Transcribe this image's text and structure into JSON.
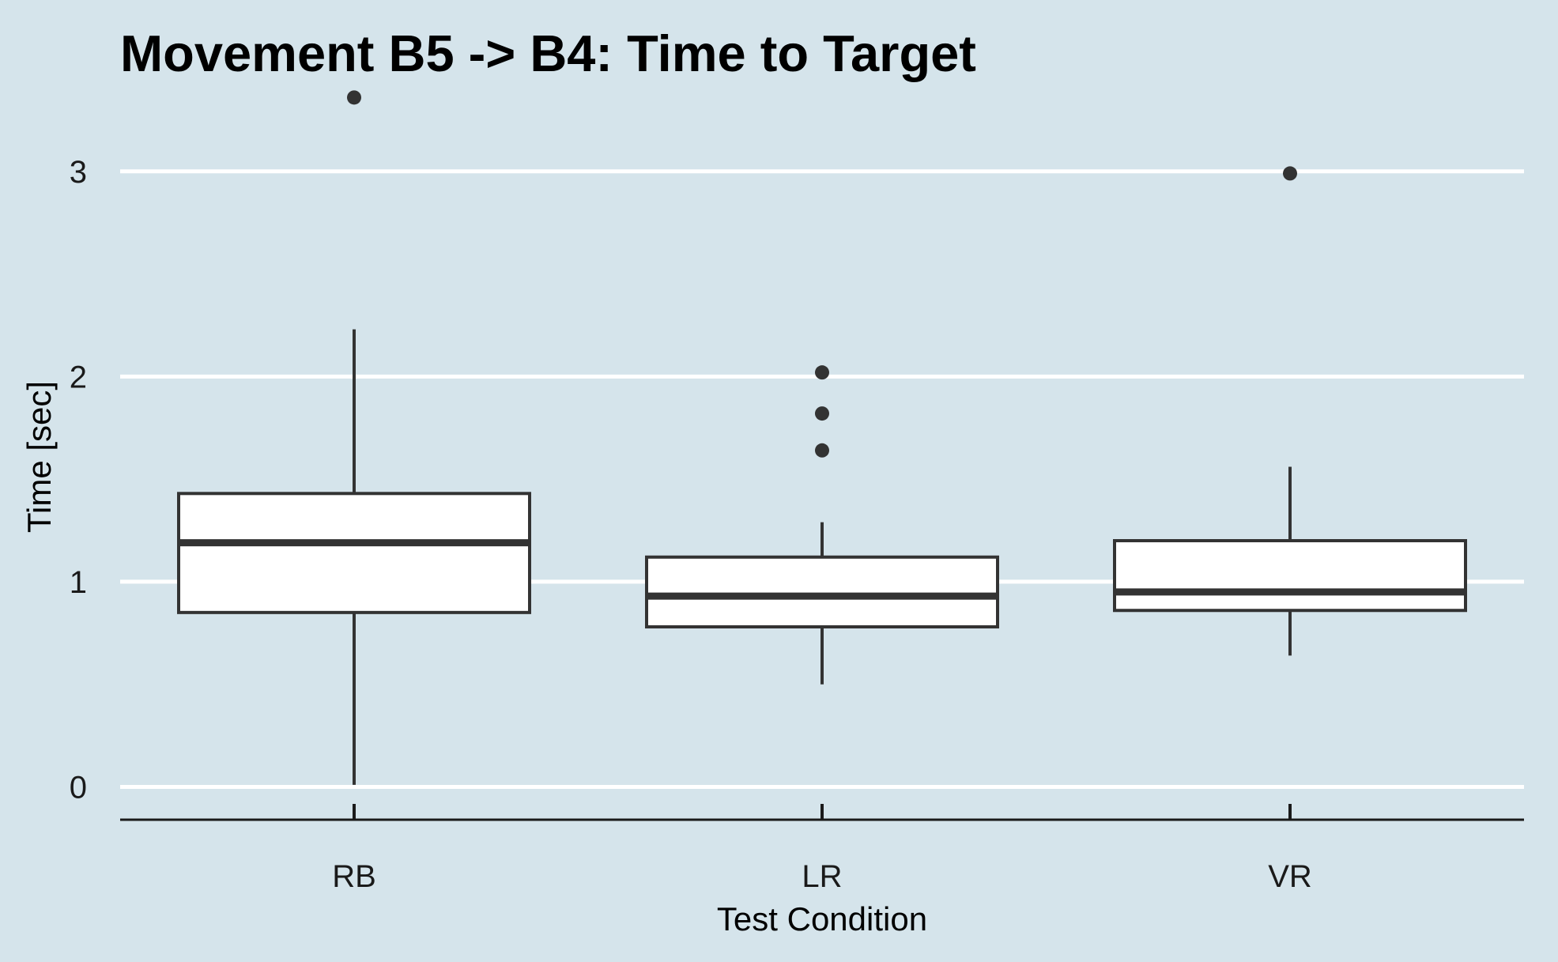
{
  "chart_data": {
    "type": "boxplot",
    "title": "Movement B5 -> B4: Time to Target",
    "xlabel": "Test Condition",
    "ylabel": "Time [sec]",
    "ylim": [
      -0.16,
      3.45
    ],
    "yticks": [
      0,
      1,
      2,
      3
    ],
    "ytick_labels": [
      "0",
      "1",
      "2",
      "3"
    ],
    "grid": "horizontal major lines",
    "categories": [
      "RB",
      "LR",
      "VR"
    ],
    "series": [
      {
        "category": "RB",
        "whisker_low": 0.01,
        "q1": 0.85,
        "median": 1.19,
        "q3": 1.43,
        "whisker_high": 2.23,
        "outliers": [
          3.36
        ]
      },
      {
        "category": "LR",
        "whisker_low": 0.5,
        "q1": 0.78,
        "median": 0.93,
        "q3": 1.12,
        "whisker_high": 1.29,
        "outliers": [
          1.64,
          1.82,
          2.02
        ]
      },
      {
        "category": "VR",
        "whisker_low": 0.64,
        "q1": 0.86,
        "median": 0.95,
        "q3": 1.2,
        "whisker_high": 1.56,
        "outliers": [
          2.99
        ]
      }
    ],
    "colors": {
      "background": "#d5e4eb",
      "box_fill": "#ffffff",
      "box_stroke": "#333333",
      "grid": "#ffffff",
      "outlier": "#333333"
    }
  }
}
